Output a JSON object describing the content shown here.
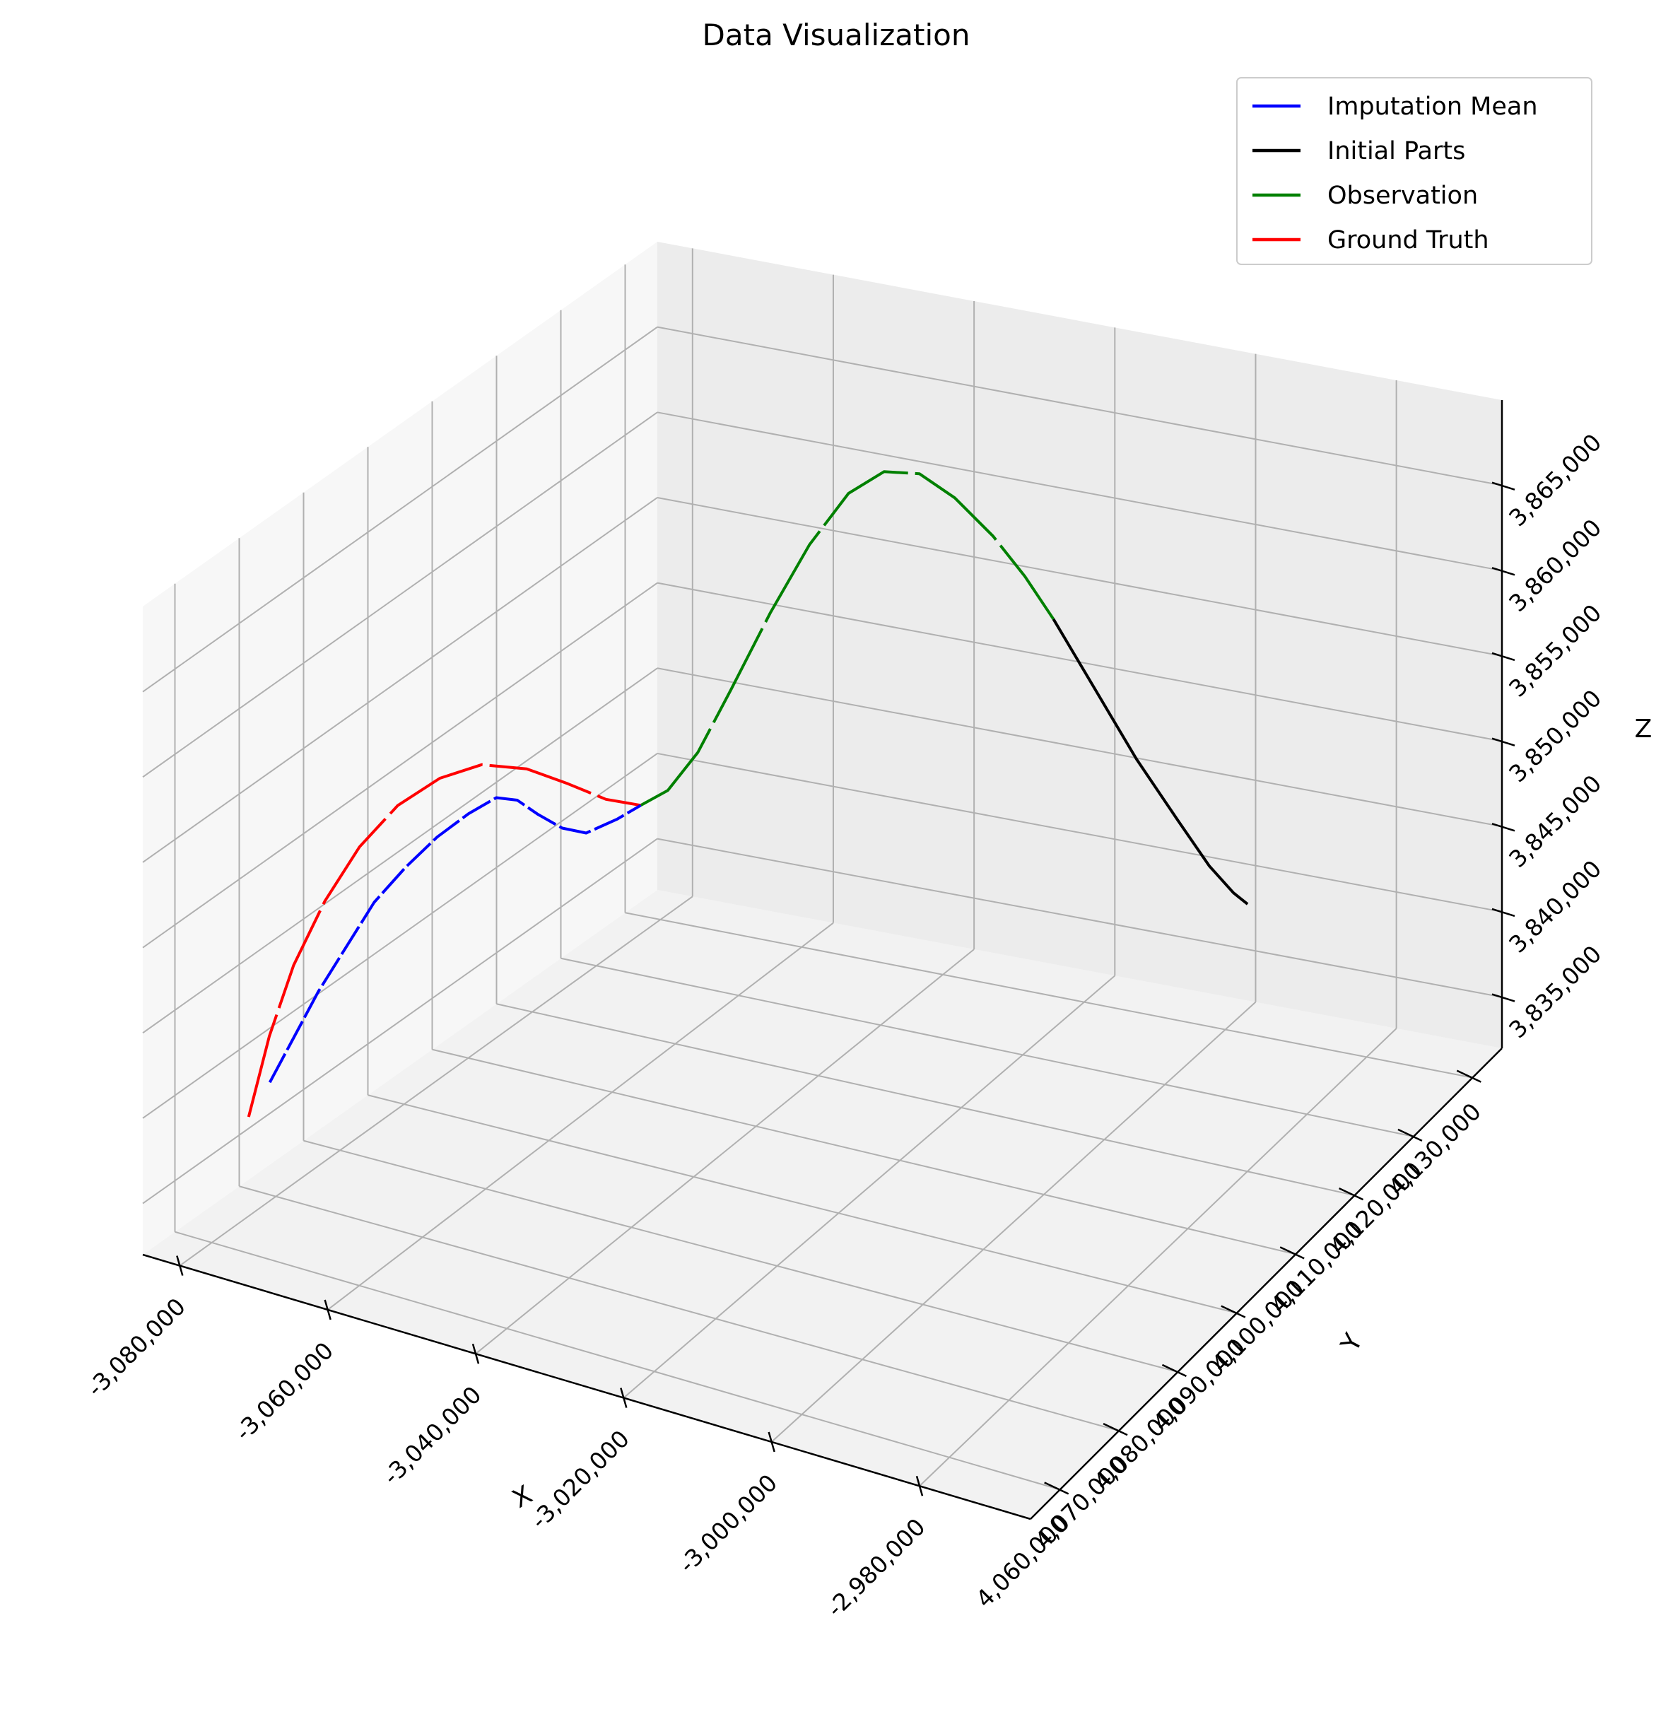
{
  "chart_data": {
    "type": "line-3d",
    "title": "Data Visualization",
    "xlabel": "X",
    "ylabel": "Y",
    "zlabel": "Z",
    "xlim": [
      -3085000,
      -2965000
    ],
    "ylim": [
      4055000,
      4135000
    ],
    "zlim": [
      3832000,
      3870000
    ],
    "x_ticks": [
      -3080000,
      -3060000,
      -3040000,
      -3020000,
      -3000000,
      -2980000
    ],
    "x_tick_labels": [
      "-3,080,000",
      "-3,060,000",
      "-3,040,000",
      "-3,020,000",
      "-3,000,000",
      "-2,980,000"
    ],
    "y_ticks": [
      4060000,
      4070000,
      4080000,
      4090000,
      4100000,
      4110000,
      4120000,
      4130000
    ],
    "y_tick_labels": [
      "4,060,000",
      "4,070,000",
      "4,080,000",
      "4,090,000",
      "4,100,000",
      "4,110,000",
      "4,120,000",
      "4,130,000"
    ],
    "z_ticks": [
      3835000,
      3840000,
      3845000,
      3850000,
      3855000,
      3860000,
      3865000
    ],
    "z_tick_labels": [
      "3,835,000",
      "3,840,000",
      "3,845,000",
      "3,850,000",
      "3,855,000",
      "3,860,000",
      "3,865,000"
    ],
    "grid": true,
    "legend_position": "top-right",
    "series": [
      {
        "name": "Imputation Mean",
        "color": "#0000ff",
        "dashed": true,
        "points": [
          [
            -3073000,
            4061000,
            3842000
          ],
          [
            -3071000,
            4062500,
            3844500
          ],
          [
            -3069000,
            4064000,
            3847000
          ],
          [
            -3066500,
            4065500,
            3849500
          ],
          [
            -3064000,
            4067000,
            3852000
          ],
          [
            -3061000,
            4068500,
            3854000
          ],
          [
            -3058000,
            4070000,
            3855700
          ],
          [
            -3055000,
            4071500,
            3857000
          ],
          [
            -3052500,
            4073000,
            3857800
          ],
          [
            -3050500,
            4074000,
            3857600
          ],
          [
            -3048500,
            4075000,
            3856700
          ],
          [
            -3046500,
            4076500,
            3855700
          ],
          [
            -3044500,
            4078000,
            3855200
          ],
          [
            -3042000,
            4080000,
            3855700
          ],
          [
            -3040000,
            4081500,
            3856300
          ]
        ]
      },
      {
        "name": "Initial Parts",
        "color": "#000000",
        "dashed": false,
        "points": [
          [
            -3020000,
            4125000,
            3856000
          ],
          [
            -3015000,
            4126000,
            3852000
          ],
          [
            -3010000,
            4127000,
            3848000
          ],
          [
            -3005000,
            4128000,
            3844500
          ],
          [
            -3001000,
            4128500,
            3842000
          ],
          [
            -2998000,
            4129000,
            3840500
          ],
          [
            -2996000,
            4129000,
            3840000
          ]
        ]
      },
      {
        "name": "Observation",
        "color": "#008000",
        "dashed": true,
        "points": [
          [
            -3040000,
            4081500,
            3856300
          ],
          [
            -3038000,
            4083500,
            3856800
          ],
          [
            -3036000,
            4086000,
            3858500
          ],
          [
            -3034000,
            4089000,
            3861500
          ],
          [
            -3032000,
            4093000,
            3865000
          ],
          [
            -3030000,
            4097000,
            3868000
          ],
          [
            -3028000,
            4101000,
            3870000
          ],
          [
            -3026500,
            4105000,
            3870200
          ],
          [
            -3025000,
            4109000,
            3869000
          ],
          [
            -3023500,
            4113000,
            3866500
          ],
          [
            -3022000,
            4117500,
            3863000
          ],
          [
            -3021000,
            4121500,
            3859500
          ],
          [
            -3020000,
            4125000,
            3856000
          ]
        ]
      },
      {
        "name": "Ground Truth",
        "color": "#ff0000",
        "dashed": true,
        "points": [
          [
            -3075000,
            4060000,
            3840000
          ],
          [
            -3073500,
            4061500,
            3844500
          ],
          [
            -3071500,
            4063000,
            3848500
          ],
          [
            -3069000,
            4065000,
            3852000
          ],
          [
            -3066000,
            4067000,
            3855000
          ],
          [
            -3062500,
            4069000,
            3857300
          ],
          [
            -3058500,
            4071000,
            3858800
          ],
          [
            -3054500,
            4073000,
            3859500
          ],
          [
            -3050500,
            4075500,
            3859000
          ],
          [
            -3047000,
            4078000,
            3857800
          ],
          [
            -3043500,
            4080000,
            3856700
          ],
          [
            -3040000,
            4081500,
            3856300
          ]
        ]
      }
    ]
  }
}
